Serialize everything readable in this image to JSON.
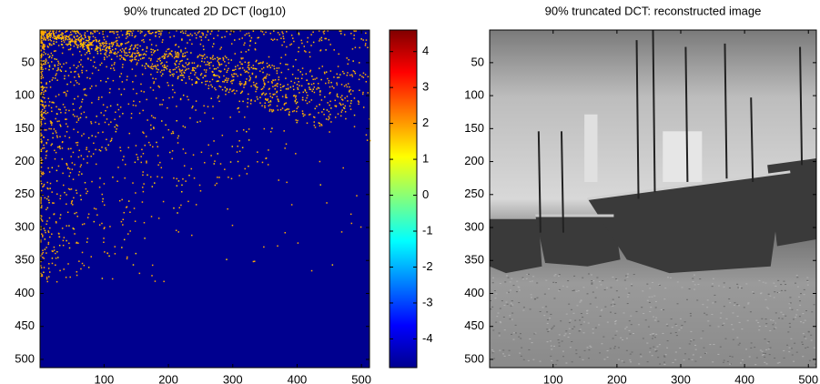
{
  "chart_data": [
    {
      "type": "image",
      "title": "90% truncated 2D DCT (log10)",
      "xlim": [
        0.5,
        512.5
      ],
      "ylim": [
        512.5,
        0.5
      ],
      "xticks": [
        100,
        200,
        300,
        400,
        500
      ],
      "yticks": [
        50,
        100,
        150,
        200,
        250,
        300,
        350,
        400,
        450,
        500
      ],
      "colormap": "jet",
      "colorbar": {
        "clim": [
          -4.8,
          4.6
        ],
        "ticks": [
          -4,
          -3,
          -2,
          -1,
          0,
          1,
          2,
          3,
          4
        ]
      }
    },
    {
      "type": "image",
      "title": "90% truncated DCT: reconstructed image",
      "xlim": [
        0.5,
        512.5
      ],
      "ylim": [
        512.5,
        0.5
      ],
      "xticks": [
        100,
        200,
        300,
        400,
        500
      ],
      "yticks": [
        50,
        100,
        150,
        200,
        250,
        300,
        350,
        400,
        450,
        500
      ],
      "colormap": "gray"
    }
  ]
}
